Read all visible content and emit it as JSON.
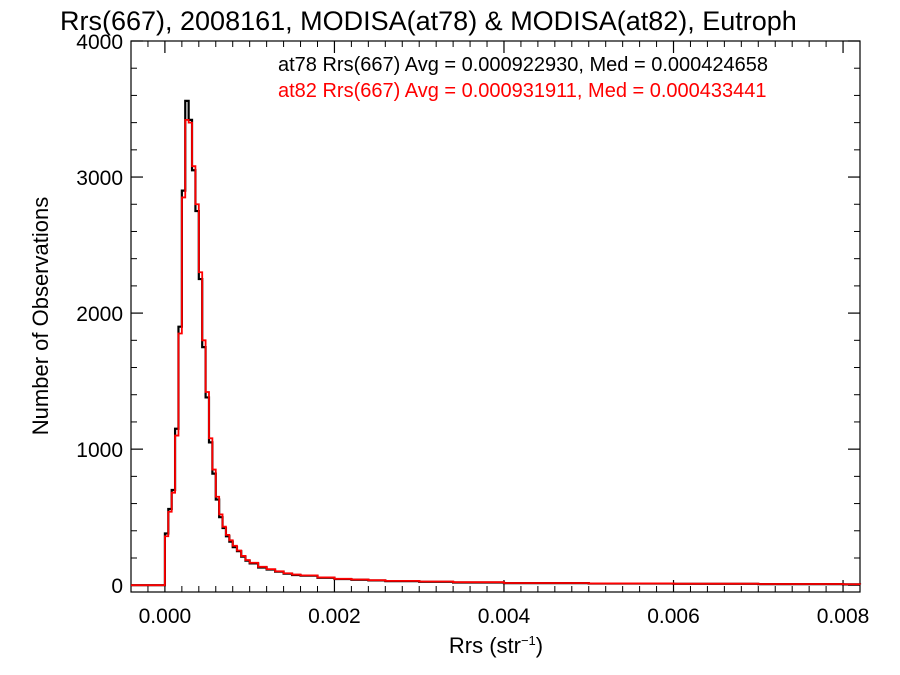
{
  "chart_data": {
    "type": "line",
    "title": "Rrs(667), 2008161, MODISA(at78) & MODISA(at82), Eutroph",
    "xlabel": "Rrs (str",
    "xlabel_superscript": "−1",
    "xlabel_close": ")",
    "ylabel": "Number of Observations",
    "xlim": [
      -0.0004,
      0.0082
    ],
    "ylim": [
      -50,
      4000
    ],
    "xticks": [
      0.0,
      0.002,
      0.004,
      0.006,
      0.008
    ],
    "xtick_labels": [
      "0.000",
      "0.002",
      "0.004",
      "0.006",
      "0.008"
    ],
    "yticks": [
      0,
      1000,
      2000,
      3000,
      4000
    ],
    "ytick_labels": [
      "0",
      "1000",
      "2000",
      "3000",
      "4000"
    ],
    "grid": false,
    "annotations": [
      {
        "text": "at78 Rrs(667) Avg = 0.000922930, Med = 0.000424658",
        "color": "#000000"
      },
      {
        "text": "at82 Rrs(667) Avg = 0.000931911, Med = 0.000433441",
        "color": "#ff0000"
      }
    ],
    "series": [
      {
        "color": "#000000",
        "style": "step",
        "x": [
          -0.0004,
          0.0,
          4e-05,
          8e-05,
          0.00012,
          0.00016,
          0.0002,
          0.00024,
          0.00028,
          0.00032,
          0.00036,
          0.0004,
          0.00044,
          0.00048,
          0.00052,
          0.00056,
          0.0006,
          0.00064,
          0.00068,
          0.00072,
          0.00076,
          0.0008,
          0.00085,
          0.0009,
          0.00095,
          0.001,
          0.0011,
          0.0012,
          0.0013,
          0.0014,
          0.0015,
          0.0016,
          0.0018,
          0.002,
          0.0022,
          0.0024,
          0.0026,
          0.003,
          0.0034,
          0.004,
          0.005,
          0.006,
          0.007,
          0.008,
          0.0082
        ],
        "y": [
          0,
          380,
          560,
          700,
          1150,
          1900,
          2900,
          3560,
          3420,
          3050,
          2750,
          2250,
          1750,
          1380,
          1050,
          820,
          630,
          500,
          420,
          360,
          320,
          280,
          250,
          210,
          180,
          160,
          130,
          115,
          100,
          85,
          75,
          70,
          55,
          45,
          40,
          35,
          30,
          25,
          20,
          15,
          12,
          10,
          8,
          6,
          5
        ]
      },
      {
        "color": "#ff0000",
        "style": "step",
        "x": [
          -0.0004,
          0.0,
          4e-05,
          8e-05,
          0.00012,
          0.00016,
          0.0002,
          0.00024,
          0.00028,
          0.00032,
          0.00036,
          0.0004,
          0.00044,
          0.00048,
          0.00052,
          0.00056,
          0.0006,
          0.00064,
          0.00068,
          0.00072,
          0.00076,
          0.0008,
          0.00085,
          0.0009,
          0.00095,
          0.001,
          0.0011,
          0.0012,
          0.0013,
          0.0014,
          0.0015,
          0.0016,
          0.0018,
          0.002,
          0.0022,
          0.0024,
          0.0026,
          0.003,
          0.0034,
          0.004,
          0.005,
          0.006,
          0.007,
          0.008,
          0.0082
        ],
        "y": [
          0,
          360,
          540,
          680,
          1100,
          1850,
          2850,
          3420,
          3400,
          3080,
          2800,
          2300,
          1800,
          1420,
          1080,
          850,
          650,
          520,
          430,
          370,
          330,
          290,
          255,
          215,
          185,
          165,
          135,
          118,
          102,
          88,
          78,
          72,
          57,
          47,
          42,
          37,
          32,
          27,
          22,
          16,
          13,
          11,
          9,
          7,
          5
        ]
      }
    ]
  }
}
